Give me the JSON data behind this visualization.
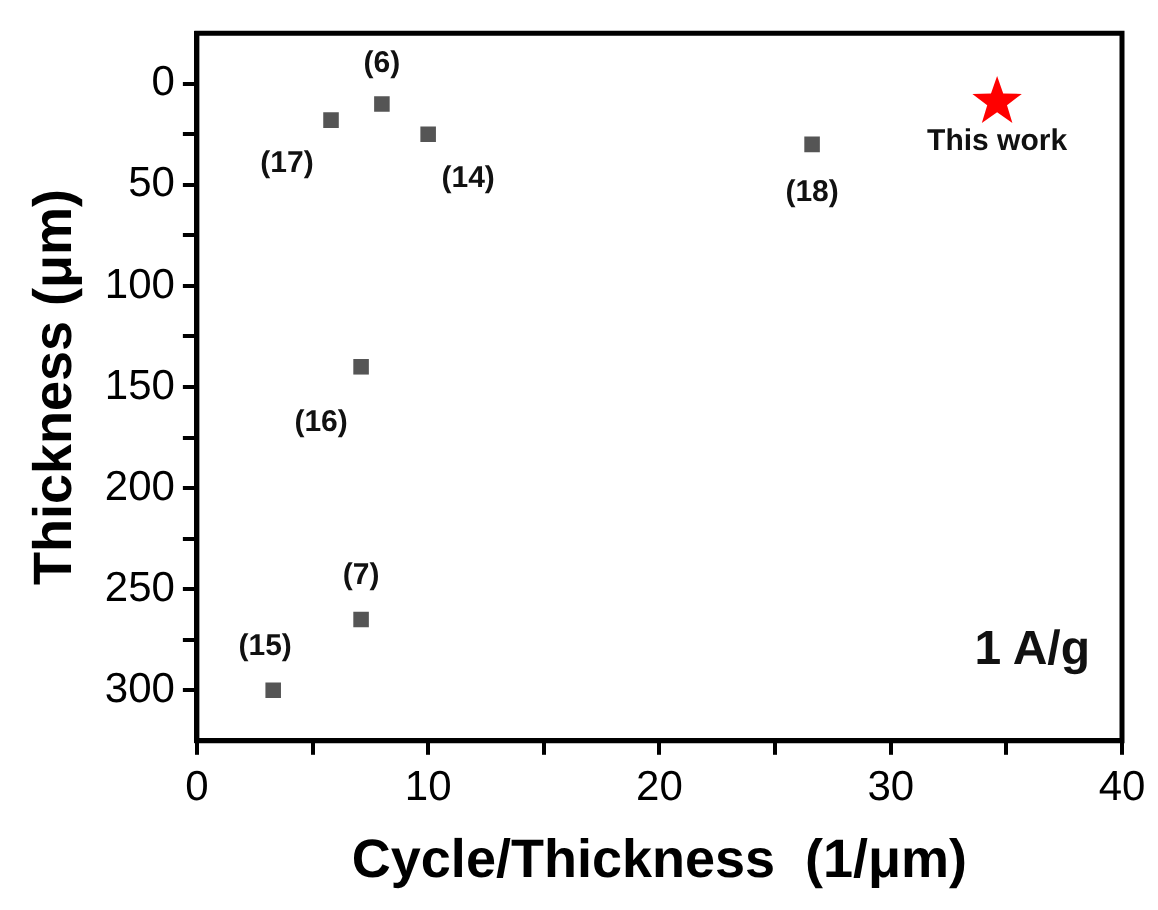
{
  "chart_data": {
    "type": "scatter",
    "xlabel": "Cycle/Thickness  (1/μm)",
    "ylabel": "Thickness (μm)",
    "xlim": [
      0,
      40
    ],
    "xticks": [
      0,
      {
        "value": 5,
        "label": null
      },
      10,
      {
        "value": 15,
        "label": null
      },
      20,
      {
        "value": 25,
        "label": null
      },
      30,
      {
        "value": 35,
        "label": null
      },
      40
    ],
    "ylim": [
      325,
      -25
    ],
    "yticks": [
      0,
      {
        "value": 25,
        "label": null
      },
      50,
      {
        "value": 75,
        "label": null
      },
      100,
      {
        "value": 125,
        "label": null
      },
      150,
      {
        "value": 175,
        "label": null
      },
      200,
      {
        "value": 225,
        "label": null
      },
      250,
      {
        "value": 275,
        "label": null
      },
      300
    ],
    "grid": false,
    "legend": "top right",
    "series": [
      {
        "color": "#555555",
        "marker": "square",
        "x": [
          5.8,
          8.0,
          10.0,
          26.6,
          7.1,
          7.1,
          3.3
        ],
        "values": [
          18,
          10,
          25,
          30,
          140,
          265,
          300
        ]
      },
      {
        "name": "This work",
        "color": "#ff0000",
        "marker": "star",
        "x": [
          34.6
        ],
        "values": [
          9
        ]
      }
    ],
    "annotations": [
      {
        "text": "(17)",
        "x": 5.8,
        "y": 18
      },
      {
        "text": "(6)",
        "x": 8.0,
        "y": 10
      },
      {
        "text": "(14)",
        "x": 10.0,
        "y": 25
      },
      {
        "text": "(18)",
        "x": 26.6,
        "y": 30
      },
      {
        "text": "(16)",
        "x": 7.1,
        "y": 140
      },
      {
        "text": "(7)",
        "x": 7.1,
        "y": 265
      },
      {
        "text": "(15)",
        "x": 3.3,
        "y": 300
      },
      "1 A/g"
    ]
  }
}
